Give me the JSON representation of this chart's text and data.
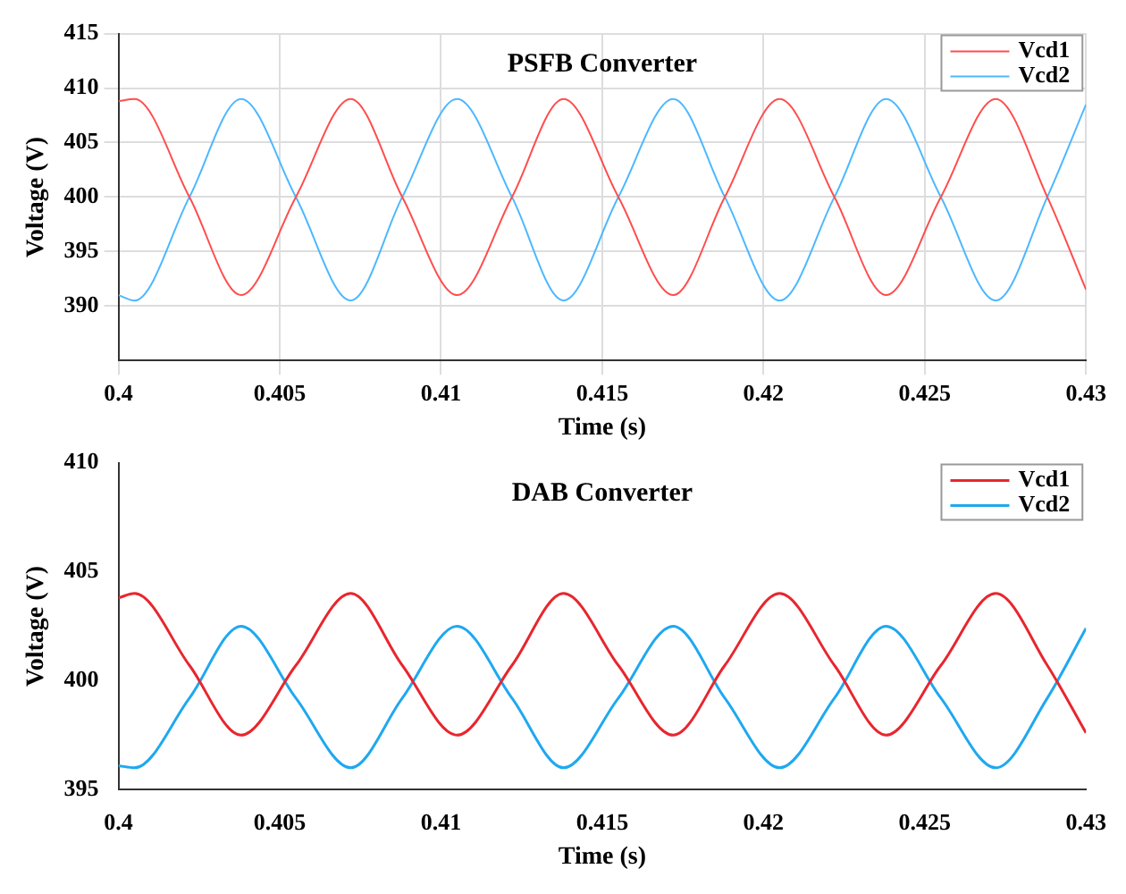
{
  "chart_data": [
    {
      "type": "line",
      "title": "PSFB Converter",
      "xlabel": "Time (s)",
      "ylabel": "Voltage (V)",
      "x": [
        0.4,
        0.4005,
        0.4022,
        0.4038,
        0.4055,
        0.4072,
        0.4088,
        0.4105,
        0.4122,
        0.4138,
        0.4155,
        0.4172,
        0.4188,
        0.4205,
        0.4222,
        0.4238,
        0.4255,
        0.4272,
        0.4288,
        0.43
      ],
      "series": [
        {
          "name": "Vcd1",
          "color": "#ff4d4d",
          "values": [
            408.8,
            409,
            400,
            391,
            400,
            409,
            400,
            391,
            400,
            409,
            400,
            391,
            400,
            409,
            400,
            391,
            400,
            409,
            400,
            391.5
          ]
        },
        {
          "name": "Vcd2",
          "color": "#4db8ff",
          "values": [
            391,
            390.5,
            400,
            409,
            400,
            390.5,
            400,
            409,
            400,
            390.5,
            400,
            409,
            400,
            390.5,
            400,
            409,
            400,
            390.5,
            400,
            408.5
          ]
        }
      ],
      "xlim": [
        0.4,
        0.43
      ],
      "xticks": [
        0.4,
        0.405,
        0.41,
        0.415,
        0.42,
        0.425,
        0.43
      ],
      "ylim": [
        385,
        415
      ],
      "yticks": [
        390,
        395,
        400,
        405,
        410,
        415
      ],
      "grid": true,
      "legend": "top right",
      "marker": "none",
      "line_style": "solid"
    },
    {
      "type": "line",
      "title": "DAB Converter",
      "xlabel": "Time (s)",
      "ylabel": "Voltage (V)",
      "x": [
        0.4,
        0.4005,
        0.4022,
        0.4038,
        0.4055,
        0.4072,
        0.4088,
        0.4105,
        0.4122,
        0.4138,
        0.4155,
        0.4172,
        0.4188,
        0.4205,
        0.4222,
        0.4238,
        0.4255,
        0.4272,
        0.4288,
        0.43
      ],
      "series": [
        {
          "name": "Vcd1",
          "color": "#e8262e",
          "values": [
            403.8,
            404,
            400.7,
            397.5,
            400.7,
            404,
            400.7,
            397.5,
            400.7,
            404,
            400.7,
            397.5,
            400.7,
            404,
            400.7,
            397.5,
            400.7,
            404,
            400.7,
            397.6
          ]
        },
        {
          "name": "Vcd2",
          "color": "#1fa8f0",
          "values": [
            396.1,
            396,
            399.2,
            402.5,
            399.2,
            396,
            399.2,
            402.5,
            399.2,
            396,
            399.2,
            402.5,
            399.2,
            396,
            399.2,
            402.5,
            399.2,
            396,
            399.2,
            402.4
          ]
        }
      ],
      "xlim": [
        0.4,
        0.43
      ],
      "xticks": [
        0.4,
        0.405,
        0.41,
        0.415,
        0.42,
        0.425,
        0.43
      ],
      "ylim": [
        395,
        410
      ],
      "yticks": [
        395,
        400,
        405,
        410
      ],
      "grid": false,
      "legend": "top right",
      "marker": "none",
      "line_style": "solid"
    }
  ]
}
